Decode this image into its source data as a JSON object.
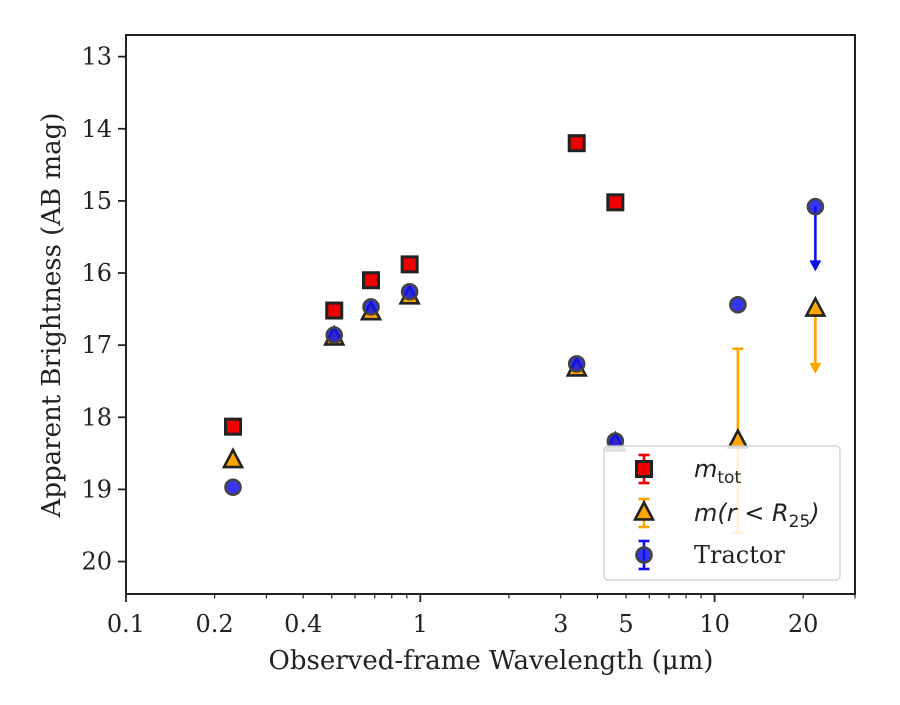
{
  "chart_data": {
    "type": "scatter",
    "title": "",
    "xlabel": "Observed-frame Wavelength (μm)",
    "ylabel": "Apparent Brightness (AB mag)",
    "xscale": "log",
    "xlim": [
      0.1,
      30
    ],
    "ylim": [
      20.45,
      12.7
    ],
    "y_inverted": true,
    "x_ticks": [
      0.1,
      0.2,
      0.4,
      1,
      3,
      5,
      10,
      20
    ],
    "x_tick_labels": [
      "0.1",
      "0.2",
      "0.4",
      "1",
      "3",
      "5",
      "10",
      "20"
    ],
    "y_ticks": [
      13,
      14,
      15,
      16,
      17,
      18,
      19,
      20
    ],
    "y_tick_labels": [
      "13",
      "14",
      "15",
      "16",
      "17",
      "18",
      "19",
      "20"
    ],
    "grid": false,
    "legend_position": "lower-right",
    "series": [
      {
        "name": "m_tot",
        "marker": "square",
        "color": "#ee0000",
        "edge_color": "#222222",
        "points": [
          {
            "x": 0.231,
            "y": 18.13
          },
          {
            "x": 0.51,
            "y": 16.52
          },
          {
            "x": 0.68,
            "y": 16.1
          },
          {
            "x": 0.92,
            "y": 15.88
          },
          {
            "x": 3.4,
            "y": 14.2
          },
          {
            "x": 4.6,
            "y": 15.02
          }
        ]
      },
      {
        "name": "m(r<R25)",
        "marker": "triangle",
        "color": "#ffa500",
        "edge_color": "#222222",
        "points": [
          {
            "x": 0.231,
            "y": 18.6
          },
          {
            "x": 0.51,
            "y": 16.9
          },
          {
            "x": 0.68,
            "y": 16.55
          },
          {
            "x": 0.92,
            "y": 16.33
          },
          {
            "x": 3.4,
            "y": 17.33
          },
          {
            "x": 4.6,
            "y": 18.37
          },
          {
            "x": 12.0,
            "y": 18.33,
            "yerr": [
              1.28,
              1.27
            ]
          },
          {
            "x": 22.0,
            "y": 16.5,
            "upper_limit": true
          }
        ]
      },
      {
        "name": "Tractor",
        "marker": "circle",
        "color": "#1010ee",
        "edge_color": "#444444",
        "points": [
          {
            "x": 0.231,
            "y": 18.97
          },
          {
            "x": 0.51,
            "y": 16.86
          },
          {
            "x": 0.68,
            "y": 16.47
          },
          {
            "x": 0.92,
            "y": 16.26
          },
          {
            "x": 3.4,
            "y": 17.26
          },
          {
            "x": 4.6,
            "y": 18.33
          },
          {
            "x": 12.0,
            "y": 16.44
          },
          {
            "x": 22.0,
            "y": 15.08,
            "upper_limit": true
          }
        ]
      }
    ],
    "legend": {
      "entries": [
        {
          "series": "m_tot",
          "base": "m",
          "sub": "tot",
          "suffix": ""
        },
        {
          "series": "m(r<R25)",
          "base": "m(r < R",
          "sub": "25",
          "suffix": ")"
        },
        {
          "series": "Tractor",
          "text": "Tractor"
        }
      ]
    }
  }
}
